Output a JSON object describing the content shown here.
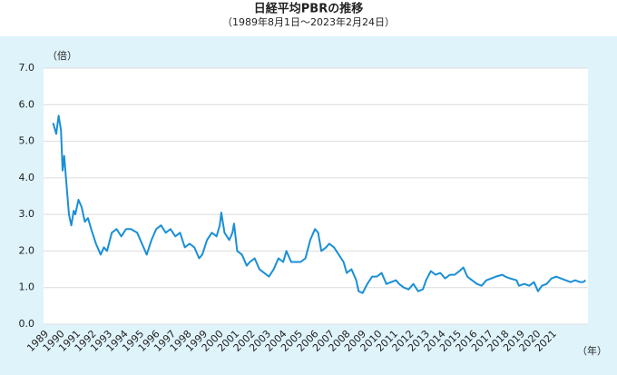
{
  "chart_data": {
    "type": "line",
    "title": "日経平均PBRの推移",
    "subtitle": "（1989年8月1日～2023年2月24日）",
    "y_label": "（倍）",
    "x_label": "（年）",
    "color": "#1a8fd6",
    "grid": true,
    "x": [
      1989.6,
      1989.8,
      1989.95,
      1990.1,
      1990.2,
      1990.3,
      1990.45,
      1990.6,
      1990.75,
      1990.9,
      1991.0,
      1991.2,
      1991.4,
      1991.6,
      1991.8,
      1992.0,
      1992.3,
      1992.6,
      1992.8,
      1993.0,
      1993.3,
      1993.6,
      1993.9,
      1994.2,
      1994.5,
      1994.9,
      1995.2,
      1995.5,
      1995.8,
      1996.1,
      1996.4,
      1996.7,
      1997.0,
      1997.3,
      1997.6,
      1997.9,
      1998.2,
      1998.5,
      1998.8,
      1999.0,
      1999.3,
      1999.6,
      1999.9,
      2000.1,
      2000.2,
      2000.4,
      2000.7,
      2000.9,
      2001.0,
      2001.2,
      2001.5,
      2001.8,
      2002.0,
      2002.3,
      2002.6,
      2002.9,
      2003.2,
      2003.5,
      2003.8,
      2004.1,
      2004.3,
      2004.6,
      2004.9,
      2005.2,
      2005.5,
      2005.8,
      2006.1,
      2006.3,
      2006.5,
      2006.8,
      2007.0,
      2007.3,
      2007.6,
      2007.9,
      2008.1,
      2008.4,
      2008.7,
      2008.85,
      2009.1,
      2009.4,
      2009.7,
      2010.0,
      2010.3,
      2010.6,
      2010.9,
      2011.2,
      2011.4,
      2011.7,
      2012.0,
      2012.3,
      2012.6,
      2012.9,
      2013.1,
      2013.4,
      2013.7,
      2014.0,
      2014.3,
      2014.6,
      2014.9,
      2015.2,
      2015.45,
      2015.7,
      2016.0,
      2016.3,
      2016.6,
      2016.9,
      2017.2,
      2017.5,
      2017.9,
      2018.1,
      2018.4,
      2018.8,
      2018.95,
      2019.3,
      2019.6,
      2019.9,
      2020.15,
      2020.4,
      2020.7,
      2021.0,
      2021.3,
      2021.6,
      2021.9,
      2022.2,
      2022.5,
      2022.8,
      2023.0,
      2023.15
    ],
    "values": [
      5.5,
      5.2,
      5.7,
      5.3,
      4.2,
      4.6,
      3.8,
      3.0,
      2.7,
      3.1,
      3.0,
      3.4,
      3.2,
      2.8,
      2.9,
      2.6,
      2.2,
      1.9,
      2.1,
      2.0,
      2.5,
      2.6,
      2.4,
      2.6,
      2.6,
      2.5,
      2.2,
      1.9,
      2.3,
      2.6,
      2.7,
      2.5,
      2.6,
      2.4,
      2.5,
      2.1,
      2.2,
      2.1,
      1.8,
      1.9,
      2.3,
      2.5,
      2.4,
      2.7,
      3.05,
      2.5,
      2.3,
      2.5,
      2.75,
      2.0,
      1.9,
      1.6,
      1.7,
      1.8,
      1.5,
      1.4,
      1.3,
      1.5,
      1.8,
      1.7,
      2.0,
      1.7,
      1.7,
      1.7,
      1.8,
      2.3,
      2.6,
      2.5,
      2.0,
      2.1,
      2.2,
      2.1,
      1.9,
      1.7,
      1.4,
      1.5,
      1.2,
      0.9,
      0.85,
      1.1,
      1.3,
      1.3,
      1.4,
      1.1,
      1.15,
      1.2,
      1.1,
      1.0,
      0.95,
      1.1,
      0.9,
      0.95,
      1.2,
      1.45,
      1.35,
      1.4,
      1.25,
      1.35,
      1.35,
      1.45,
      1.55,
      1.3,
      1.2,
      1.1,
      1.05,
      1.2,
      1.25,
      1.3,
      1.35,
      1.3,
      1.25,
      1.2,
      1.05,
      1.1,
      1.05,
      1.15,
      0.9,
      1.05,
      1.1,
      1.25,
      1.3,
      1.25,
      1.2,
      1.15,
      1.2,
      1.15,
      1.15,
      1.2
    ],
    "xlim": [
      1989,
      2023.3
    ],
    "xticks": [
      1989,
      1990,
      1991,
      1992,
      1993,
      1994,
      1995,
      1996,
      1997,
      1998,
      1999,
      2000,
      2001,
      2002,
      2003,
      2004,
      2005,
      2006,
      2007,
      2008,
      2009,
      2010,
      2011,
      2012,
      2013,
      2014,
      2015,
      2016,
      2017,
      2018,
      2019,
      2020,
      2021
    ],
    "ylim": [
      0,
      7
    ],
    "yticks": [
      {
        "value": 0,
        "label": "0.0"
      },
      {
        "value": 1,
        "label": "1.0"
      },
      {
        "value": 2,
        "label": "2.0"
      },
      {
        "value": 3,
        "label": "3.0"
      },
      {
        "value": 4,
        "label": "4.0"
      },
      {
        "value": 5,
        "label": "5.0"
      },
      {
        "value": 6,
        "label": "6.0"
      },
      {
        "value": 7,
        "label": "7.0"
      }
    ]
  }
}
